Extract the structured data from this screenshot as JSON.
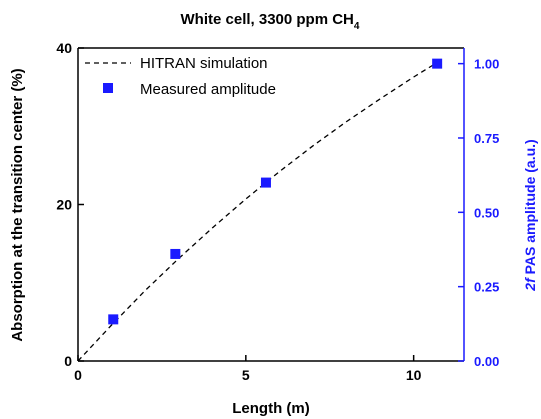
{
  "chart_data": {
    "type": "line",
    "title": "White cell, 3300 ppm CH",
    "title_subscript": "4",
    "xlabel": "Length (m)",
    "ylabel": "Absorption at the transition center (%)",
    "ylabel_right_italic": "2f",
    "ylabel_right_rest": " PAS amplitude (a.u.)",
    "xlim": [
      0,
      11.5
    ],
    "ylim": [
      0,
      40
    ],
    "ylim_right": [
      0,
      1.0526
    ],
    "xticks": [
      "0",
      "5",
      "10"
    ],
    "yticks": [
      "0",
      "20",
      "40"
    ],
    "yticks_right": [
      "0.00",
      "0.25",
      "0.50",
      "0.75",
      "1.00"
    ],
    "legend_position": "top-left",
    "series": [
      {
        "name": "HITRAN simulation",
        "axis": "left",
        "style": "dashed",
        "x": [
          0,
          1,
          2,
          3,
          4,
          5,
          6,
          7,
          8,
          9,
          10,
          10.8
        ],
        "y": [
          0,
          4.6,
          9.0,
          13.1,
          17.0,
          20.7,
          24.2,
          27.5,
          30.6,
          33.5,
          36.3,
          38.4
        ]
      },
      {
        "name": "Measured amplitude",
        "axis": "right",
        "style": "square-markers",
        "x": [
          1.05,
          2.9,
          5.6,
          10.7
        ],
        "y": [
          0.14,
          0.36,
          0.6,
          1.0
        ]
      }
    ],
    "colors": {
      "right_axis": "#1a1aff",
      "markers": "#1a1aff",
      "simulation": "#000000"
    }
  }
}
